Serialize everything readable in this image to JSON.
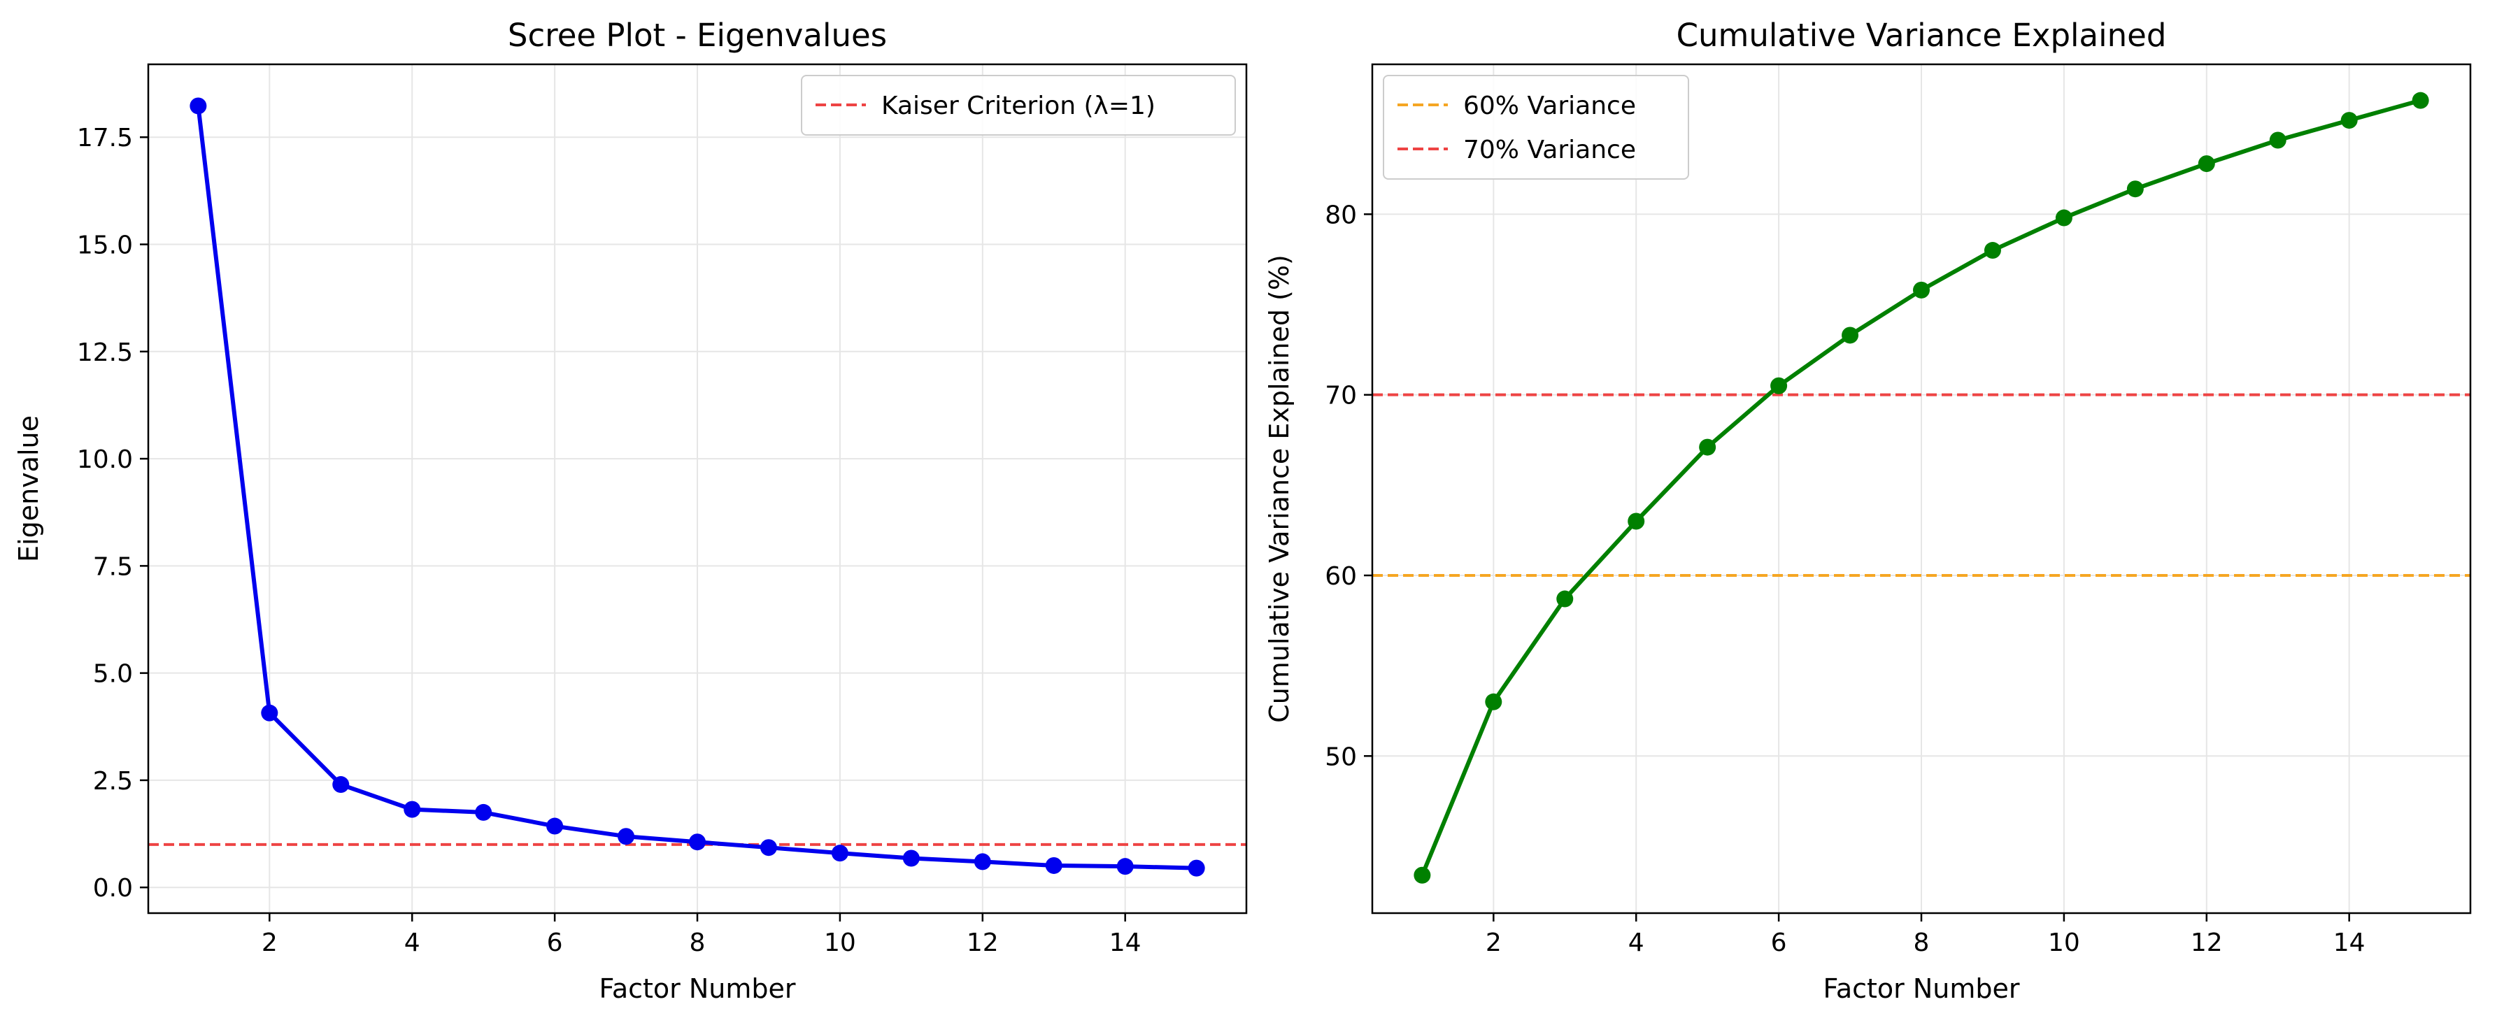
{
  "chart_data": [
    {
      "type": "line",
      "title": "Scree Plot - Eigenvalues",
      "xlabel": "Factor Number",
      "ylabel": "Eigenvalue",
      "xlim": [
        0.3,
        15.7
      ],
      "ylim": [
        -0.6,
        19.2
      ],
      "xticks": [
        2,
        4,
        6,
        8,
        10,
        12,
        14
      ],
      "yticks": [
        0.0,
        2.5,
        5.0,
        7.5,
        10.0,
        12.5,
        15.0,
        17.5
      ],
      "ytick_labels": [
        "0.0",
        "2.5",
        "5.0",
        "7.5",
        "10.0",
        "12.5",
        "15.0",
        "17.5"
      ],
      "grid": true,
      "legend_position": "top-right",
      "series": [
        {
          "x": [
            1,
            2,
            3,
            4,
            5,
            6,
            7,
            8,
            9,
            10,
            11,
            12,
            13,
            14,
            15
          ],
          "values": [
            18.23,
            4.07,
            2.4,
            1.82,
            1.75,
            1.43,
            1.19,
            1.06,
            0.93,
            0.8,
            0.68,
            0.6,
            0.51,
            0.49,
            0.45
          ],
          "color": "#0000ee"
        }
      ],
      "reference_lines": [
        {
          "name": "Kaiser Criterion (λ=1)",
          "y": 1.0,
          "color": "#ee4444"
        }
      ]
    },
    {
      "type": "line",
      "title": "Cumulative Variance Explained",
      "xlabel": "Factor Number",
      "ylabel": "Cumulative Variance Explained (%)",
      "xlim": [
        0.3,
        15.7
      ],
      "ylim": [
        41.3,
        88.3
      ],
      "xticks": [
        2,
        4,
        6,
        8,
        10,
        12,
        14
      ],
      "yticks": [
        50,
        60,
        70,
        80
      ],
      "ytick_labels": [
        "50",
        "60",
        "70",
        "80"
      ],
      "grid": true,
      "legend_position": "top-left",
      "series": [
        {
          "x": [
            1,
            2,
            3,
            4,
            5,
            6,
            7,
            8,
            9,
            10,
            11,
            12,
            13,
            14,
            15
          ],
          "values": [
            43.4,
            53.0,
            58.7,
            63.0,
            67.1,
            70.5,
            73.3,
            75.8,
            78.0,
            79.8,
            81.4,
            82.8,
            84.1,
            85.2,
            86.3
          ],
          "color": "#008000"
        }
      ],
      "reference_lines": [
        {
          "name": "60% Variance",
          "y": 60,
          "color": "#f5a623"
        },
        {
          "name": "70% Variance",
          "y": 70,
          "color": "#ee4444"
        }
      ]
    }
  ]
}
